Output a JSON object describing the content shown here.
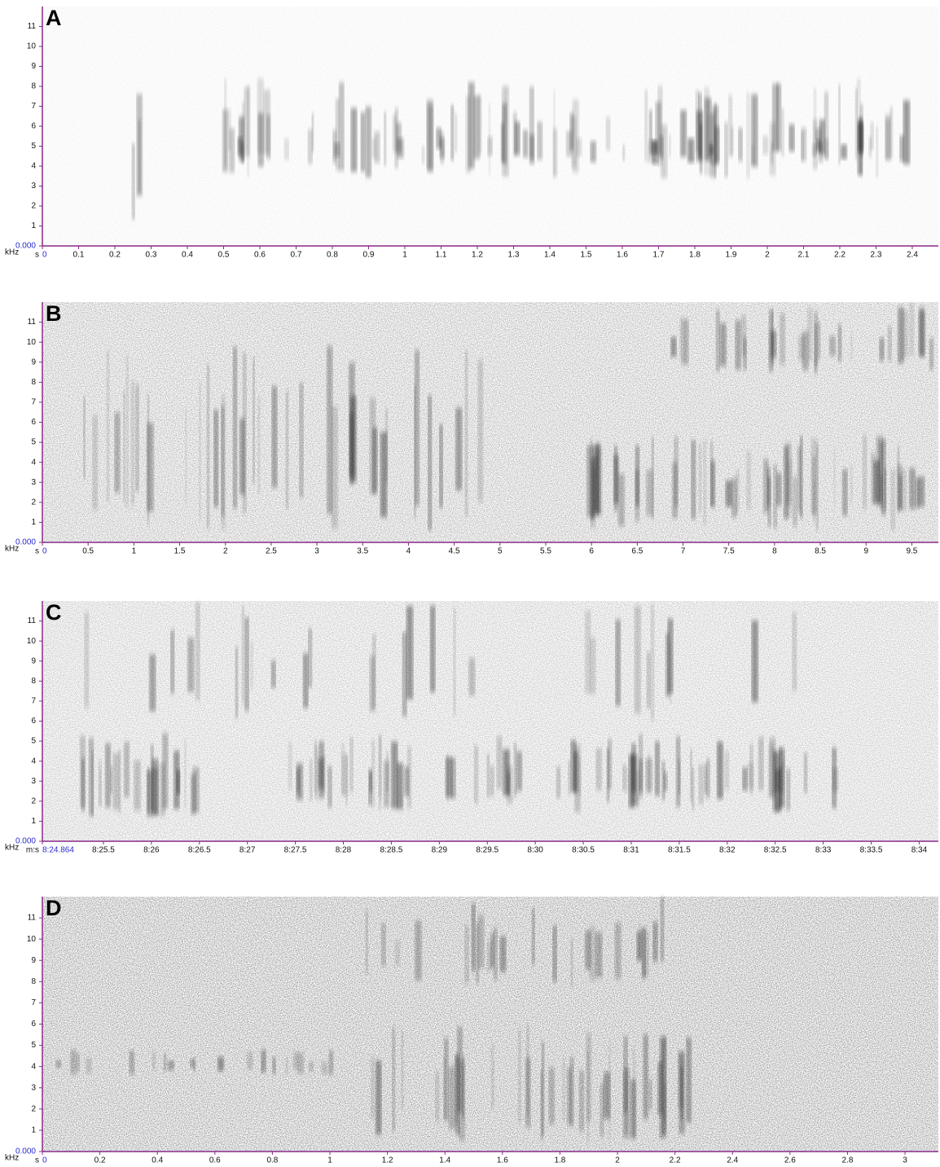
{
  "chart_data": [
    {
      "type": "spectrogram",
      "panel_label": "A",
      "y_label": "kHz",
      "x_label": "s",
      "xlim": [
        0,
        2.472
      ],
      "xticks": [
        0,
        0.1,
        0.2,
        0.3,
        0.4,
        0.5,
        0.6,
        0.7,
        0.8,
        0.9,
        1,
        1.1,
        1.2,
        1.3,
        1.4,
        1.5,
        1.6,
        1.7,
        1.8,
        1.9,
        2,
        2.1,
        2.2,
        2.3,
        2.4
      ],
      "ylim": [
        0,
        12
      ],
      "yticks": [
        {
          "value": 0,
          "label": "0.000"
        },
        1,
        2,
        3,
        4,
        5,
        6,
        7,
        8,
        9,
        10,
        11
      ]
    },
    {
      "type": "spectrogram",
      "panel_label": "B",
      "y_label": "kHz",
      "x_label": "s",
      "xlim": [
        0,
        9.79
      ],
      "xticks": [
        0,
        0.5,
        1,
        1.5,
        2,
        2.5,
        3,
        3.5,
        4,
        4.5,
        5,
        5.5,
        6,
        6.5,
        7,
        7.5,
        8,
        8.5,
        9,
        9.5
      ],
      "ylim": [
        0,
        12
      ],
      "yticks": [
        {
          "value": 0,
          "label": "0.000"
        },
        1,
        2,
        3,
        4,
        5,
        6,
        7,
        8,
        9,
        10,
        11
      ]
    },
    {
      "type": "spectrogram",
      "panel_label": "C",
      "y_label": "kHz",
      "x_label": "m:s",
      "xlim": [
        504.864,
        514.2
      ],
      "xticks": [
        {
          "value": 504.864,
          "label": "8:24.864"
        },
        {
          "value": 505.5,
          "label": "8:25.5"
        },
        {
          "value": 506,
          "label": "8:26"
        },
        {
          "value": 506.5,
          "label": "8:26.5"
        },
        {
          "value": 507,
          "label": "8:27"
        },
        {
          "value": 507.5,
          "label": "8:27.5"
        },
        {
          "value": 508,
          "label": "8:28"
        },
        {
          "value": 508.5,
          "label": "8:28.5"
        },
        {
          "value": 509,
          "label": "8:29"
        },
        {
          "value": 509.5,
          "label": "8:29.5"
        },
        {
          "value": 510,
          "label": "8:30"
        },
        {
          "value": 510.5,
          "label": "8:30.5"
        },
        {
          "value": 511,
          "label": "8:31"
        },
        {
          "value": 511.5,
          "label": "8:31.5"
        },
        {
          "value": 512,
          "label": "8:32"
        },
        {
          "value": 512.5,
          "label": "8:32.5"
        },
        {
          "value": 513,
          "label": "8:33"
        },
        {
          "value": 513.5,
          "label": "8:33.5"
        },
        {
          "value": 514,
          "label": "8:34"
        }
      ],
      "ylim": [
        0,
        12
      ],
      "yticks": [
        {
          "value": 0,
          "label": "0.000"
        },
        1,
        2,
        3,
        4,
        5,
        6,
        7,
        8,
        9,
        10,
        11
      ]
    },
    {
      "type": "spectrogram",
      "panel_label": "D",
      "y_label": "kHz",
      "x_label": "s",
      "xlim": [
        0,
        3.116
      ],
      "xticks": [
        0,
        0.2,
        0.4,
        0.6,
        0.8,
        1,
        1.2,
        1.4,
        1.6,
        1.8,
        2,
        2.2,
        2.4,
        2.6,
        2.8,
        3
      ],
      "ylim": [
        0,
        12
      ],
      "yticks": [
        {
          "value": 0,
          "label": "0.000"
        },
        1,
        2,
        3,
        4,
        5,
        6,
        7,
        8,
        9,
        10,
        11
      ]
    }
  ]
}
